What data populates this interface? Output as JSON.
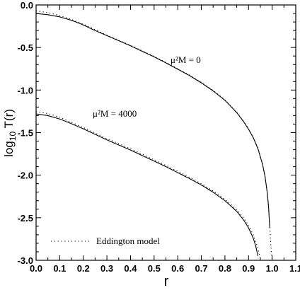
{
  "chart_data": {
    "type": "line",
    "xlabel": "r",
    "ylabel": "log",
    "ylabel_sub": "10",
    "ylabel_rest": " T(r)",
    "xlim": [
      0.0,
      1.1
    ],
    "ylim": [
      -3.0,
      0.0
    ],
    "x_ticks": [
      "0.0",
      "0.1",
      "0.2",
      "0.3",
      "0.4",
      "0.5",
      "0.6",
      "0.7",
      "0.8",
      "0.9",
      "1.0",
      "1.1"
    ],
    "y_ticks": [
      "0.0",
      "-0.5",
      "-1.0",
      "-1.5",
      "-2.0",
      "-2.5",
      "-3.0"
    ],
    "grid": false,
    "legend": {
      "label": "Eddington model",
      "placement": "bottom-left"
    },
    "annotations": [
      {
        "text": "μ²M = 0",
        "x": 0.73,
        "y": -0.68
      },
      {
        "text": "μ²M = 4000",
        "x": 0.26,
        "y": -1.33
      }
    ],
    "series": [
      {
        "style": "solid",
        "x": [
          0.0,
          0.05,
          0.1,
          0.15,
          0.2,
          0.25,
          0.3,
          0.35,
          0.4,
          0.45,
          0.5,
          0.55,
          0.6,
          0.65,
          0.7,
          0.75,
          0.8,
          0.85,
          0.88,
          0.9,
          0.92,
          0.94,
          0.96,
          0.97,
          0.98,
          0.985,
          0.99
        ],
        "y": [
          -0.1,
          -0.115,
          -0.14,
          -0.18,
          -0.235,
          -0.3,
          -0.36,
          -0.42,
          -0.48,
          -0.545,
          -0.61,
          -0.68,
          -0.755,
          -0.83,
          -0.915,
          -1.01,
          -1.12,
          -1.265,
          -1.375,
          -1.46,
          -1.56,
          -1.69,
          -1.88,
          -2.02,
          -2.22,
          -2.38,
          -2.62
        ]
      },
      {
        "style": "dotted",
        "x": [
          0.0,
          0.05,
          0.1,
          0.15,
          0.2,
          0.25,
          0.3,
          0.35,
          0.4,
          0.45,
          0.5,
          0.55,
          0.6,
          0.65,
          0.7,
          0.75,
          0.8,
          0.85,
          0.88,
          0.9,
          0.92,
          0.94,
          0.96,
          0.97,
          0.98,
          0.99,
          0.995,
          1.0
        ],
        "y": [
          -0.07,
          -0.09,
          -0.125,
          -0.17,
          -0.225,
          -0.29,
          -0.355,
          -0.415,
          -0.475,
          -0.54,
          -0.605,
          -0.675,
          -0.75,
          -0.825,
          -0.91,
          -1.005,
          -1.115,
          -1.26,
          -1.37,
          -1.455,
          -1.555,
          -1.685,
          -1.875,
          -2.015,
          -2.21,
          -2.6,
          -2.85,
          -3.0
        ]
      },
      {
        "style": "solid",
        "x": [
          0.0,
          0.05,
          0.1,
          0.15,
          0.2,
          0.25,
          0.3,
          0.35,
          0.4,
          0.45,
          0.5,
          0.55,
          0.6,
          0.65,
          0.7,
          0.75,
          0.8,
          0.85,
          0.88,
          0.9,
          0.92,
          0.93,
          0.94
        ],
        "y": [
          -1.28,
          -1.3,
          -1.34,
          -1.395,
          -1.455,
          -1.52,
          -1.585,
          -1.645,
          -1.705,
          -1.77,
          -1.835,
          -1.9,
          -1.97,
          -2.04,
          -2.115,
          -2.2,
          -2.3,
          -2.425,
          -2.53,
          -2.62,
          -2.74,
          -2.83,
          -2.95
        ]
      },
      {
        "style": "dotted",
        "x": [
          0.0,
          0.05,
          0.1,
          0.15,
          0.2,
          0.25,
          0.3,
          0.35,
          0.4,
          0.45,
          0.5,
          0.55,
          0.6,
          0.65,
          0.7,
          0.75,
          0.8,
          0.85,
          0.88,
          0.9,
          0.92,
          0.94,
          0.95
        ],
        "y": [
          -1.255,
          -1.275,
          -1.32,
          -1.38,
          -1.44,
          -1.505,
          -1.57,
          -1.63,
          -1.69,
          -1.755,
          -1.82,
          -1.885,
          -1.955,
          -2.025,
          -2.1,
          -2.185,
          -2.285,
          -2.405,
          -2.505,
          -2.59,
          -2.7,
          -2.86,
          -2.98
        ]
      }
    ]
  }
}
